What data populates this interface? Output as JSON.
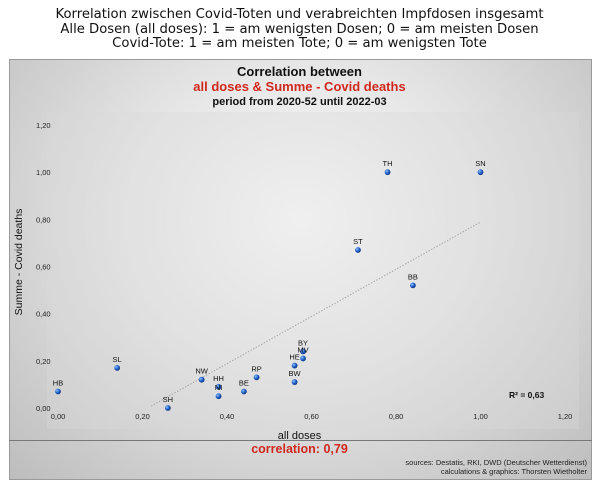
{
  "header": {
    "line1": "Korrelation zwischen Covid-Toten und verabreichten Impfdosen insgesamt",
    "line2": "Alle Dosen (all doses): 1 = am wenigsten Dosen; 0 = am meisten Dosen",
    "line3": "Covid-Tote: 1 = am meisten Tote; 0 = am wenigsten Tote"
  },
  "footer": {
    "correlation": "correlation: 0,79",
    "source1": "sources: Destatis, RKI, DWD (Deutscher Wetterdienst)",
    "source2": "calculations & graphics: Thorsten Wietholter"
  },
  "chart_data": {
    "type": "scatter",
    "title": "Correlation between",
    "subtitle": "all doses & Summe - Covid deaths",
    "period": "period from 2020-52 until 2022-03",
    "xlabel": "all doses",
    "ylabel": "Summe - Covid deaths",
    "xlim": [
      0,
      1.2
    ],
    "ylim": [
      0,
      1.2
    ],
    "xticks": [
      "0,00",
      "0,20",
      "0,40",
      "0,60",
      "0,80",
      "1,00",
      "1,20"
    ],
    "yticks": [
      "0,00",
      "0,20",
      "0,40",
      "0,60",
      "0,80",
      "1,00",
      "1,20"
    ],
    "r2_label": "R² = 0,63",
    "trendline": {
      "x0": 0.22,
      "x1": 1.0
    },
    "grid": false,
    "point_color": "#1f5fc8",
    "title_color": "#d0281e",
    "points": [
      {
        "label": "HB",
        "x": 0.0,
        "y": 0.07
      },
      {
        "label": "SL",
        "x": 0.14,
        "y": 0.17
      },
      {
        "label": "SH",
        "x": 0.26,
        "y": 0.0
      },
      {
        "label": "NW",
        "x": 0.34,
        "y": 0.12
      },
      {
        "label": "HH",
        "x": 0.38,
        "y": 0.09
      },
      {
        "label": "NI",
        "x": 0.38,
        "y": 0.05
      },
      {
        "label": "BE",
        "x": 0.44,
        "y": 0.07
      },
      {
        "label": "RP",
        "x": 0.47,
        "y": 0.13
      },
      {
        "label": "HE",
        "x": 0.56,
        "y": 0.18
      },
      {
        "label": "BW",
        "x": 0.56,
        "y": 0.11
      },
      {
        "label": "BY",
        "x": 0.58,
        "y": 0.24
      },
      {
        "label": "MV",
        "x": 0.58,
        "y": 0.21
      },
      {
        "label": "ST",
        "x": 0.71,
        "y": 0.67
      },
      {
        "label": "BB",
        "x": 0.84,
        "y": 0.52
      },
      {
        "label": "TH",
        "x": 0.78,
        "y": 1.0
      },
      {
        "label": "SN",
        "x": 1.0,
        "y": 1.0
      }
    ]
  }
}
